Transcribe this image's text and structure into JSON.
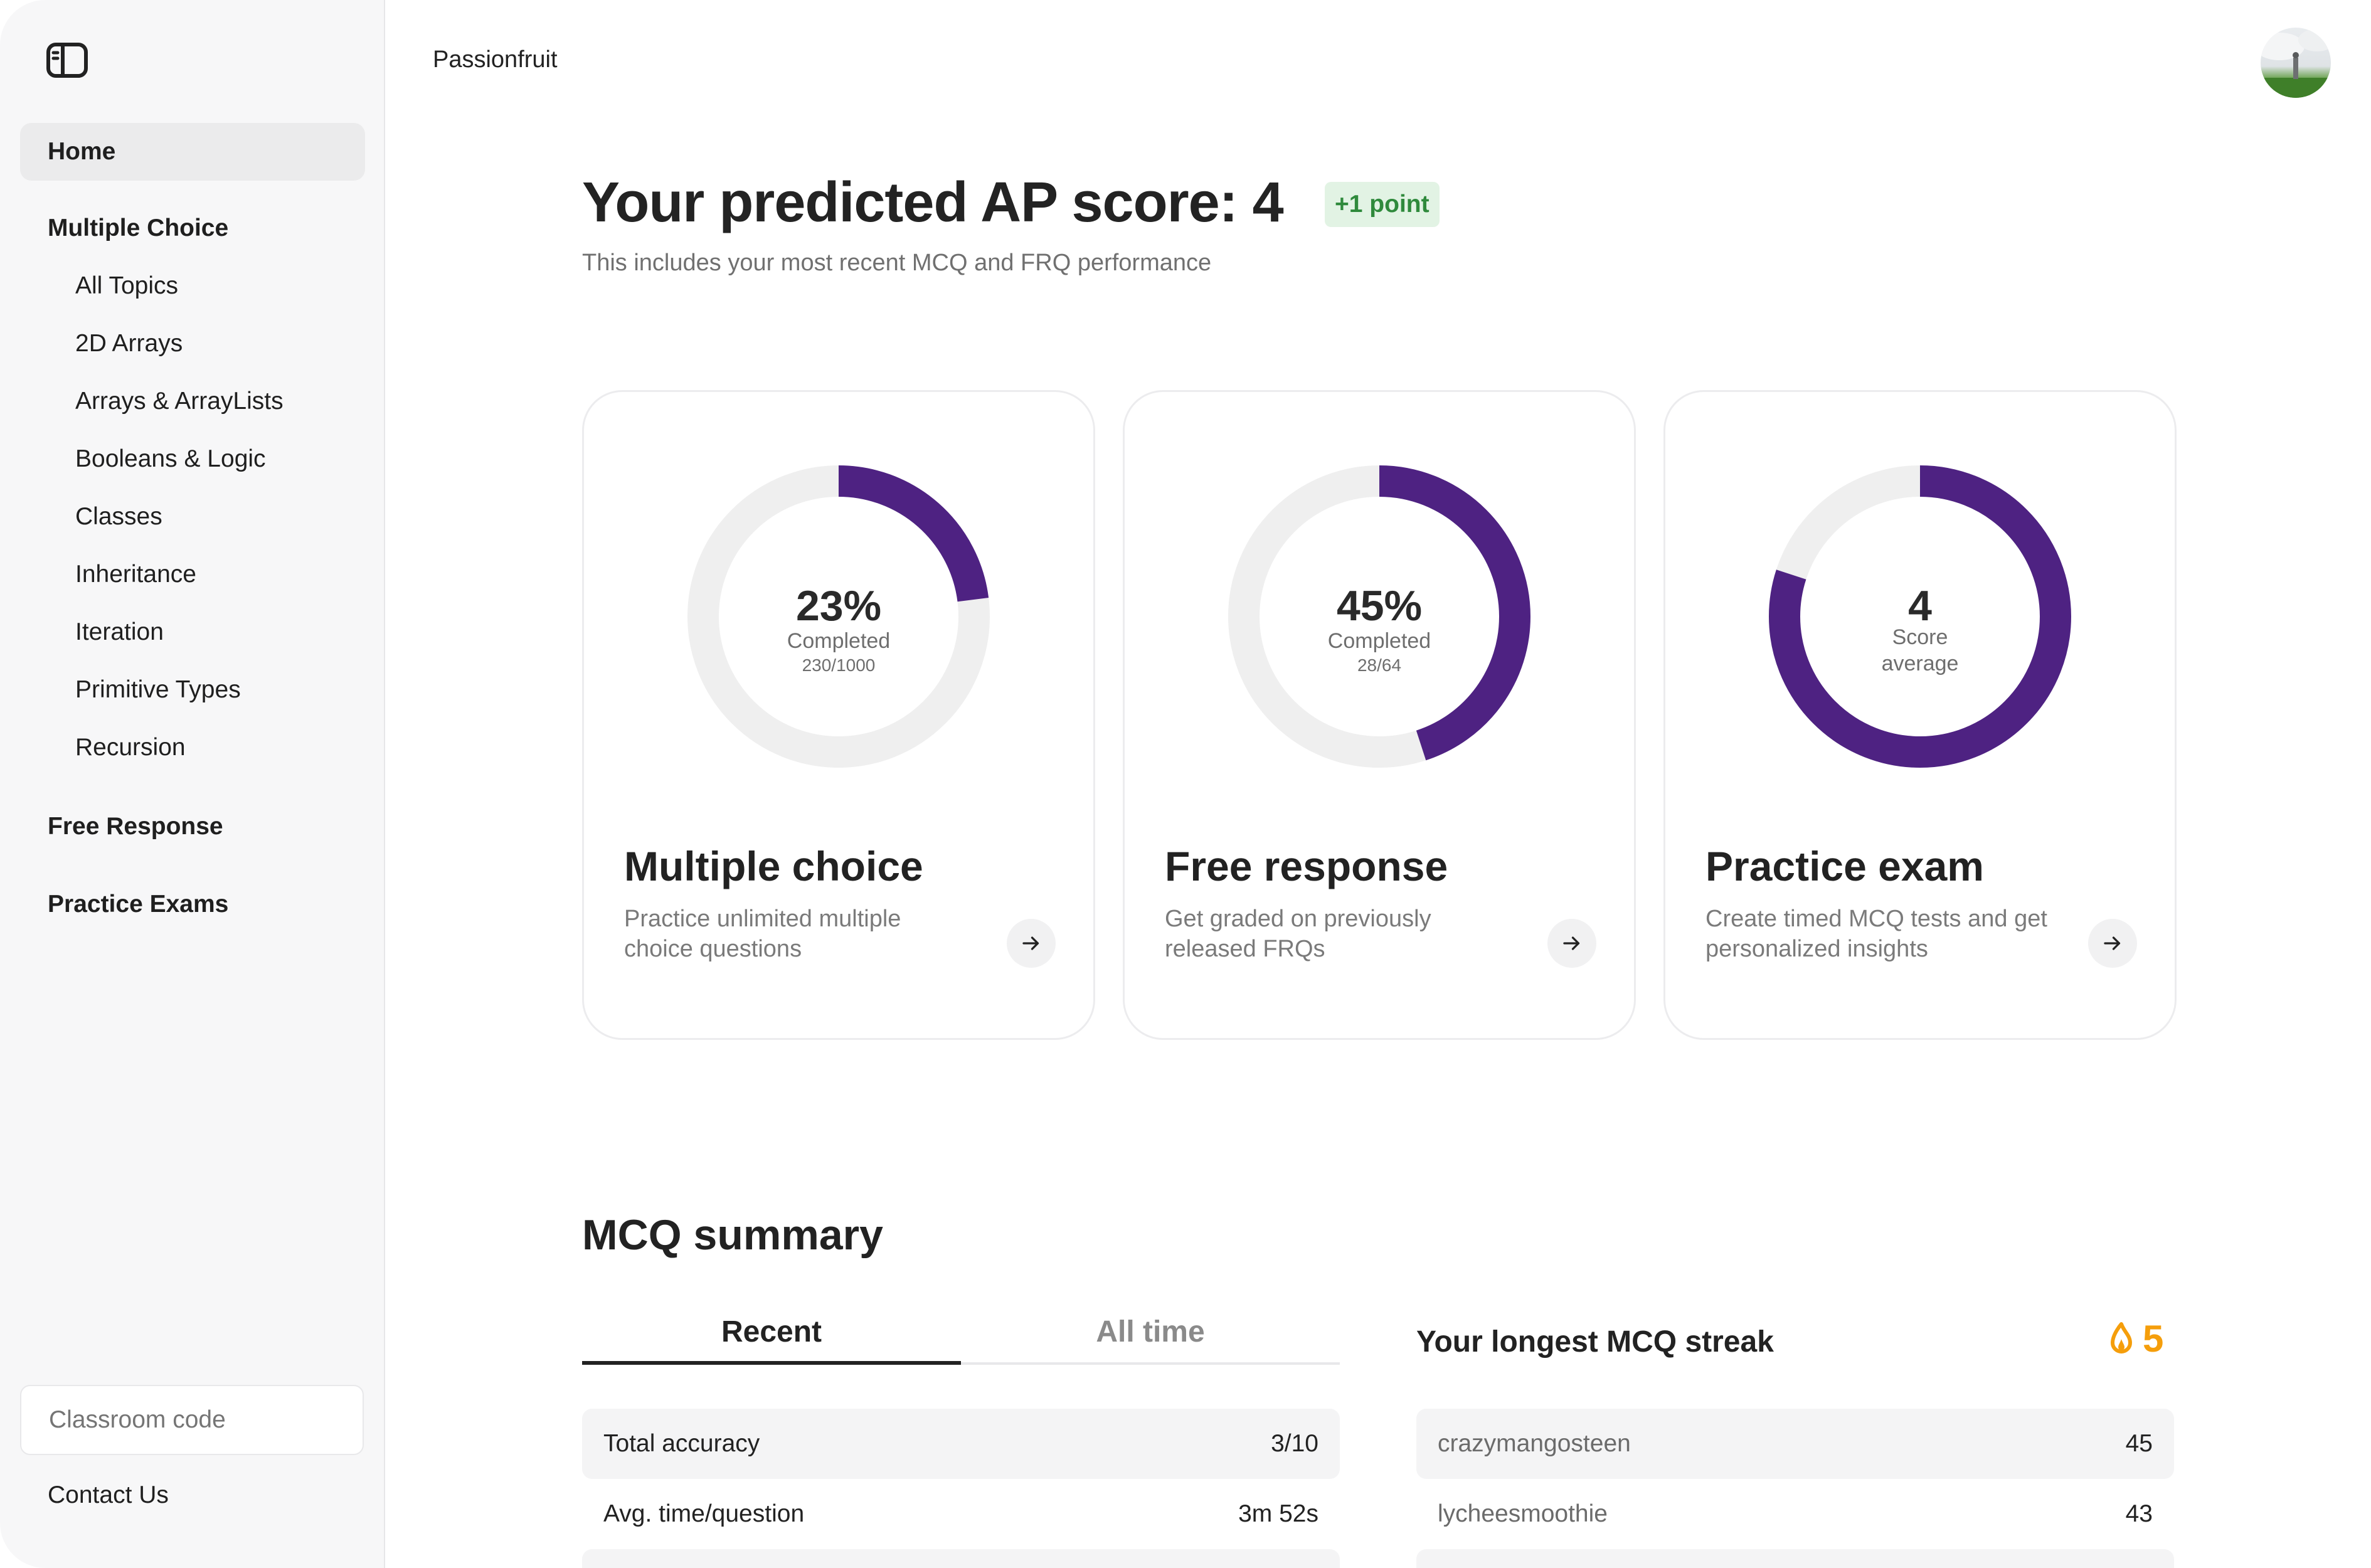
{
  "app": {
    "name": "Passionfruit"
  },
  "sidebar": {
    "home": "Home",
    "multiple_choice": {
      "title": "Multiple Choice",
      "topics": [
        "All Topics",
        "2D Arrays",
        "Arrays & ArrayLists",
        "Booleans & Logic",
        "Classes",
        "Inheritance",
        "Iteration",
        "Primitive Types",
        "Recursion"
      ]
    },
    "free_response": "Free Response",
    "practice_exams": "Practice Exams",
    "classroom_placeholder": "Classroom code",
    "contact": "Contact Us"
  },
  "hero": {
    "title": "Your predicted AP score: 4",
    "badge": "+1 point",
    "subtitle": "This includes your most recent MCQ and FRQ performance"
  },
  "cards": [
    {
      "value": "23%",
      "label": "Completed",
      "detail": "230/1000",
      "progress": 0.23,
      "title": "Multiple choice",
      "description": "Practice unlimited multiple choice questions"
    },
    {
      "value": "45%",
      "label": "Completed",
      "detail": "28/64",
      "progress": 0.45,
      "title": "Free response",
      "description": "Get graded on previously released FRQs"
    },
    {
      "value": "4",
      "label": "Score",
      "detail": "average",
      "progress": 0.8,
      "title": "Practice exam",
      "description": "Create timed MCQ tests and get personalized insights"
    }
  ],
  "summary": {
    "title": "MCQ summary",
    "tabs": [
      "Recent",
      "All time"
    ],
    "stats": [
      {
        "label": "Total accuracy",
        "value": "3/10"
      },
      {
        "label": "Avg. time/question",
        "value": "3m 52s"
      }
    ]
  },
  "streak": {
    "title": "Your longest MCQ streak",
    "count": "5",
    "leaderboard": [
      {
        "name": "crazymangosteen",
        "value": "45"
      },
      {
        "name": "lycheesmoothie",
        "value": "43"
      }
    ]
  },
  "colors": {
    "accent": "#4e2282",
    "ring_track": "#efefef",
    "badge_bg": "#e2f3e4",
    "badge_text": "#2f8a3c",
    "streak": "#f59e0b"
  }
}
